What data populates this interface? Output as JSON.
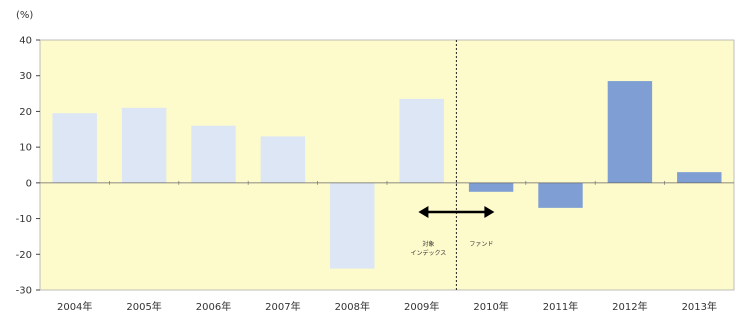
{
  "chart_data": {
    "type": "bar",
    "ylabel": "(%)",
    "ylim": [
      -30,
      40
    ],
    "yticks": [
      40,
      30,
      20,
      10,
      0,
      -10,
      -20,
      -30
    ],
    "categories": [
      "2004年",
      "2005年",
      "2006年",
      "2007年",
      "2008年",
      "2009年",
      "2010年",
      "2011年",
      "2012年",
      "2013年"
    ],
    "values": [
      19.5,
      21,
      16,
      13,
      -24,
      23.5,
      -2.5,
      -7,
      28.5,
      3
    ],
    "colors": {
      "plot_background": "#fdfacc",
      "bar_before": "#dce6f5",
      "bar_after": "#7f9fd4"
    },
    "annotations": {
      "left_label": [
        "対象",
        "インデックス"
      ],
      "right_label": "ファンド"
    }
  }
}
